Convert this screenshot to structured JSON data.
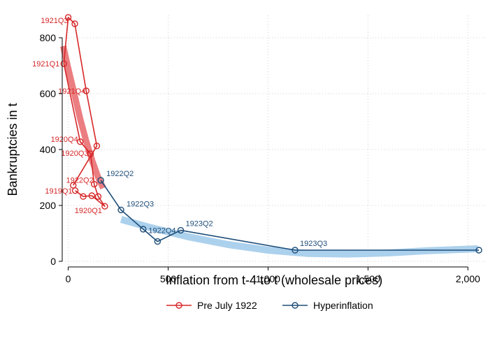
{
  "chart_data": {
    "type": "scatter",
    "title": "",
    "xlabel": "Inflation from t-4 to t (wholesale prices)",
    "ylabel": "Bankruptcies in t",
    "xlim": [
      -30,
      2090
    ],
    "ylim": [
      -20,
      880
    ],
    "x_ticks": [
      0,
      500,
      1000,
      1500,
      2000
    ],
    "x_tick_labels": [
      "0",
      "500",
      "1,000",
      "1,500",
      "2,000"
    ],
    "y_ticks": [
      0,
      200,
      400,
      600,
      800
    ],
    "y_tick_labels": [
      "0",
      "200",
      "400",
      "600",
      "800"
    ],
    "grid": true,
    "legend": "bottom",
    "series": [
      {
        "name": "Pre July 1922",
        "color": "#d62728",
        "fit_color": "#e8676b",
        "points": [
          {
            "label": "1919Q1",
            "x": 35,
            "y": 253
          },
          {
            "label": "",
            "x": 75,
            "y": 232
          },
          {
            "label": "",
            "x": 118,
            "y": 235
          },
          {
            "label": "1920Q1",
            "x": 183,
            "y": 197
          },
          {
            "label": "",
            "x": 150,
            "y": 232
          },
          {
            "label": "1922Q2",
            "x": 130,
            "y": 276
          },
          {
            "label": "1920Q3",
            "x": 112,
            "y": 385
          },
          {
            "label": "1920Q4",
            "x": 60,
            "y": 428
          },
          {
            "label": "1921Q1",
            "x": -22,
            "y": 707
          },
          {
            "label": "1921Q3",
            "x": 0,
            "y": 873
          },
          {
            "label": "",
            "x": 33,
            "y": 850
          },
          {
            "label": "1921Q4",
            "x": 90,
            "y": 610
          },
          {
            "label": "",
            "x": 143,
            "y": 413
          },
          {
            "label": "",
            "x": 25,
            "y": 272
          }
        ],
        "fit": {
          "x": [
            -25,
            0,
            30,
            60,
            90,
            120,
            150,
            175
          ],
          "y": [
            770,
            690,
            600,
            510,
            430,
            360,
            300,
            262
          ]
        }
      },
      {
        "name": "Hyperinflation",
        "color": "#1f4e79",
        "fit_color": "#9ec9ea",
        "points": [
          {
            "label": "1922Q2",
            "x": 163,
            "y": 290
          },
          {
            "label": "1922Q3",
            "x": 264,
            "y": 184
          },
          {
            "label": "",
            "x": 375,
            "y": 115
          },
          {
            "label": "1922Q4",
            "x": 447,
            "y": 71
          },
          {
            "label": "1923Q2",
            "x": 563,
            "y": 111
          },
          {
            "label": "1923Q3",
            "x": 1135,
            "y": 40
          },
          {
            "label": "",
            "x": 2055,
            "y": 40
          }
        ],
        "fit": {
          "x": [
            265,
            400,
            600,
            800,
            1000,
            1200,
            1400,
            1600,
            1800,
            2050
          ],
          "y": [
            150,
            123,
            88,
            60,
            40,
            28,
            26,
            30,
            38,
            45
          ]
        }
      }
    ]
  }
}
